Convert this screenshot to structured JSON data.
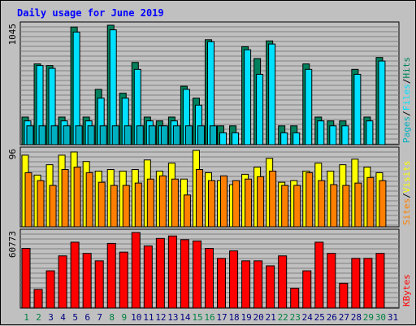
{
  "chart_data": {
    "type": "bar",
    "title": "Daily usage for June 2019",
    "days": [
      "1",
      "2",
      "3",
      "4",
      "5",
      "6",
      "7",
      "8",
      "9",
      "10",
      "11",
      "12",
      "13",
      "14",
      "15",
      "16",
      "17",
      "18",
      "19",
      "20",
      "21",
      "22",
      "23",
      "24",
      "25",
      "26",
      "27",
      "28",
      "29",
      "30",
      "31"
    ],
    "weekend_days": [
      "1",
      "2",
      "8",
      "9",
      "15",
      "16",
      "22",
      "23",
      "29",
      "30"
    ],
    "panels": [
      {
        "id": "hits",
        "max_label": "1045",
        "scale": "log",
        "ylim": [
          1,
          1045
        ],
        "legend": [
          "Pages",
          "/",
          "Files",
          "/",
          "Hits"
        ],
        "series": [
          {
            "name": "Hits",
            "color": "#00805c",
            "values": [
              5,
              110,
              100,
              5,
              940,
              5,
              25,
              1045,
              20,
              120,
              5,
              4,
              5,
              30,
              15,
              450,
              3,
              3,
              300,
              150,
              420,
              3,
              3,
              110,
              5,
              4,
              4,
              80,
              5,
              160,
              0
            ]
          },
          {
            "name": "Files",
            "color": "#00e0ff",
            "values": [
              4,
              100,
              85,
              4,
              700,
              4,
              15,
              800,
              15,
              80,
              4,
              3,
              4,
              25,
              10,
              400,
              2,
              2,
              250,
              60,
              350,
              2,
              2,
              80,
              4,
              3,
              3,
              60,
              4,
              130,
              0
            ]
          },
          {
            "name": "Pages",
            "color": "#00b0c0",
            "values": [
              3,
              3,
              3,
              3,
              3,
              3,
              3,
              3,
              3,
              3,
              3,
              3,
              3,
              3,
              3,
              3,
              0,
              0,
              0,
              0,
              0,
              0,
              0,
              0,
              0,
              0,
              0,
              0,
              0,
              0,
              0
            ]
          }
        ]
      },
      {
        "id": "visits",
        "max_label": "96",
        "scale": "linear",
        "ylim": [
          0,
          96
        ],
        "legend": [
          "Sites",
          "/",
          "Visits"
        ],
        "series": [
          {
            "name": "Visits",
            "color": "#ffff00",
            "values": [
              90,
              65,
              78,
              90,
              94,
              82,
              70,
              72,
              70,
              72,
              84,
              70,
              80,
              60,
              96,
              68,
              58,
              53,
              66,
              75,
              86,
              56,
              58,
              70,
              80,
              70,
              78,
              85,
              75,
              68,
              0
            ]
          },
          {
            "name": "Sites",
            "color": "#ff8000",
            "values": [
              68,
              58,
              52,
              72,
              75,
              68,
              56,
              52,
              52,
              55,
              60,
              64,
              60,
              40,
              72,
              58,
              64,
              58,
              60,
              63,
              70,
              52,
              52,
              68,
              58,
              53,
              52,
              55,
              62,
              58,
              0
            ]
          }
        ]
      },
      {
        "id": "kbytes",
        "max_label": "60773",
        "scale": "linear",
        "ylim": [
          0,
          60773
        ],
        "legend": [
          "KBytes"
        ],
        "series": [
          {
            "name": "KBytes",
            "color": "#ff0000",
            "values": [
              48000,
              15000,
              30000,
              42000,
              53000,
              44000,
              38000,
              52000,
              45000,
              60773,
              50000,
              56000,
              58000,
              55000,
              54000,
              48000,
              40000,
              46000,
              38000,
              38000,
              34000,
              42000,
              16000,
              30000,
              53000,
              44000,
              20000,
              40000,
              40000,
              44000,
              0
            ]
          }
        ]
      }
    ],
    "colors": {
      "title": "#0000ff",
      "plot_bg": "#c0c0c0",
      "grid": "#808080",
      "day_weekday": "#000080",
      "day_weekend": "#008040",
      "legend_slash": "#000000"
    }
  }
}
